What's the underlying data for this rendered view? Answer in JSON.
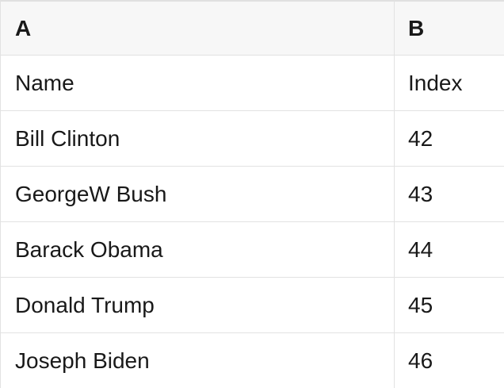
{
  "table": {
    "header": {
      "a": "A",
      "b": "B"
    },
    "rows": [
      {
        "a": "Name",
        "b": "Index"
      },
      {
        "a": "Bill Clinton",
        "b": "42"
      },
      {
        "a": "GeorgeW Bush",
        "b": "43"
      },
      {
        "a": "Barack Obama",
        "b": "44"
      },
      {
        "a": "Donald Trump",
        "b": "45"
      },
      {
        "a": "Joseph Biden",
        "b": "46"
      }
    ],
    "colors": {
      "header_bg": "#f7f7f7",
      "border": "#e2e2e2",
      "text": "#191919",
      "row_bg": "#ffffff"
    }
  }
}
